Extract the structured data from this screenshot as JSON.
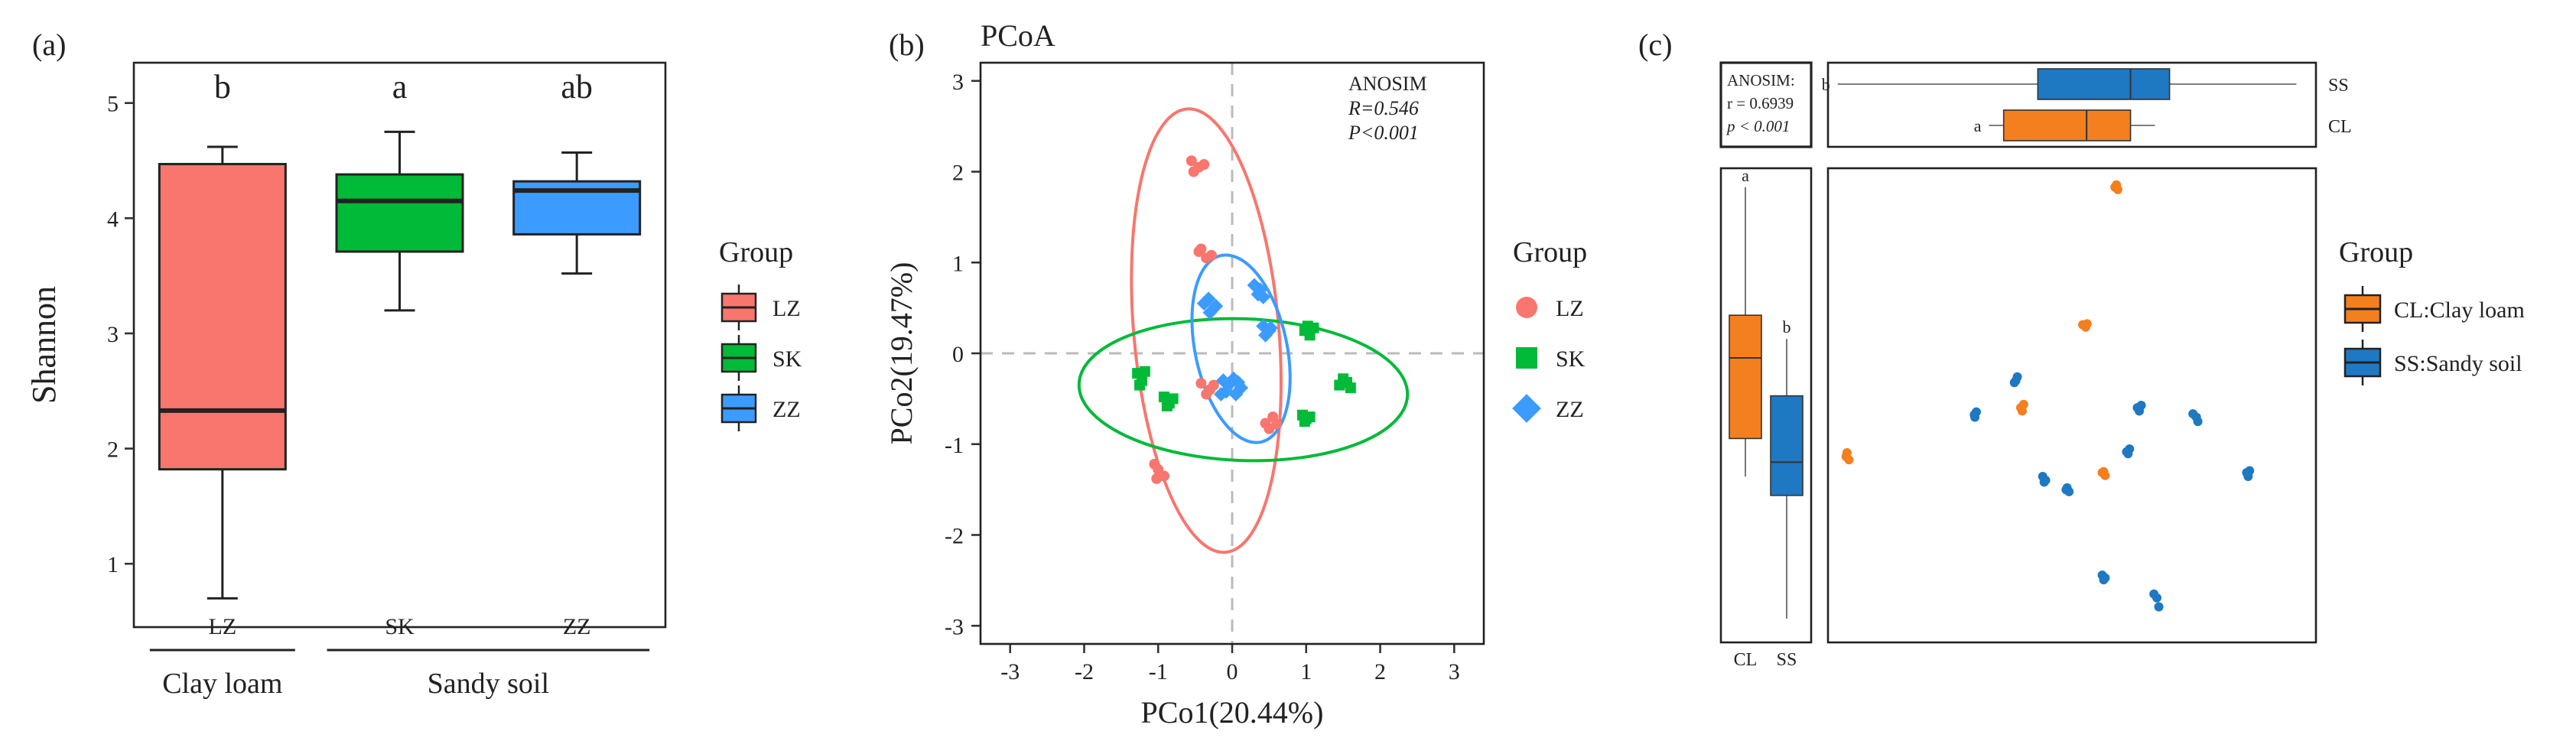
{
  "panel_labels": [
    "(a)",
    "(b)",
    "(c)"
  ],
  "chart_data": [
    {
      "type": "box",
      "panel": "(a)",
      "title": "",
      "ylabel": "Shannon",
      "ylim": [
        0.45,
        5.35
      ],
      "yticks": [
        1,
        2,
        3,
        4,
        5
      ],
      "grid": false,
      "categories": [
        "LZ",
        "SK",
        "ZZ"
      ],
      "boxes": [
        {
          "name": "LZ",
          "color": "#F8766D",
          "min": 0.7,
          "q1": 1.82,
          "median": 2.33,
          "q3": 4.47,
          "max": 4.62,
          "letter": "b"
        },
        {
          "name": "SK",
          "color": "#00BA38",
          "min": 3.2,
          "q1": 3.71,
          "median": 4.15,
          "q3": 4.38,
          "max": 4.75,
          "letter": "a"
        },
        {
          "name": "ZZ",
          "color": "#3C9BFF",
          "min": 3.52,
          "q1": 3.86,
          "median": 4.24,
          "q3": 4.32,
          "max": 4.57,
          "letter": "ab"
        }
      ],
      "groups": [
        {
          "label": "Clay loam",
          "members": [
            "LZ"
          ]
        },
        {
          "label": "Sandy soil",
          "members": [
            "SK",
            "ZZ"
          ]
        }
      ],
      "legend": {
        "title": "Group",
        "position": "right",
        "entries": [
          "LZ",
          "SK",
          "ZZ"
        ]
      }
    },
    {
      "type": "scatter",
      "panel": "(b)",
      "title": "PCoA",
      "xlabel": "PCo1(20.44%)",
      "ylabel": "PCo2(19.47%)",
      "xlim": [
        -3.4,
        3.4
      ],
      "ylim": [
        -3.2,
        3.2
      ],
      "xticks": [
        -3,
        -2,
        -1,
        0,
        1,
        2,
        3
      ],
      "yticks": [
        -3,
        -2,
        -1,
        0,
        1,
        2,
        3
      ],
      "grid": false,
      "annotation": {
        "line1": "ANOSIM",
        "line2": "R=0.546",
        "line3": "P<0.001"
      },
      "series": [
        {
          "name": "LZ",
          "color": "#F8766D",
          "marker": "circle",
          "points": [
            [
              -0.55,
              2.12
            ],
            [
              -0.45,
              2.05
            ],
            [
              -0.38,
              2.08
            ],
            [
              -0.52,
              2.0
            ],
            [
              -0.45,
              1.12
            ],
            [
              -0.35,
              1.05
            ],
            [
              -0.28,
              1.08
            ],
            [
              -0.42,
              1.15
            ],
            [
              -0.42,
              -0.33
            ],
            [
              -0.3,
              -0.4
            ],
            [
              -0.35,
              -0.45
            ],
            [
              -0.25,
              -0.35
            ],
            [
              0.45,
              -0.77
            ],
            [
              0.55,
              -0.7
            ],
            [
              0.6,
              -0.78
            ],
            [
              0.5,
              -0.83
            ],
            [
              -1.05,
              -1.22
            ],
            [
              -1.0,
              -1.28
            ],
            [
              -0.92,
              -1.35
            ],
            [
              -1.02,
              -1.38
            ]
          ]
        },
        {
          "name": "SK",
          "color": "#00BA38",
          "marker": "square",
          "points": [
            [
              -1.28,
              -0.22
            ],
            [
              -1.22,
              -0.3
            ],
            [
              -1.18,
              -0.2
            ],
            [
              -1.25,
              -0.35
            ],
            [
              -0.92,
              -0.48
            ],
            [
              -0.85,
              -0.55
            ],
            [
              -0.8,
              -0.5
            ],
            [
              -0.88,
              -0.58
            ],
            [
              0.98,
              0.25
            ],
            [
              1.05,
              0.2
            ],
            [
              1.1,
              0.28
            ],
            [
              1.02,
              0.3
            ],
            [
              0.95,
              -0.68
            ],
            [
              1.0,
              -0.72
            ],
            [
              1.05,
              -0.7
            ],
            [
              0.98,
              -0.75
            ],
            [
              1.45,
              -0.35
            ],
            [
              1.55,
              -0.32
            ],
            [
              1.5,
              -0.28
            ],
            [
              1.6,
              -0.38
            ]
          ]
        },
        {
          "name": "ZZ",
          "color": "#3C9BFF",
          "marker": "diamond",
          "points": [
            [
              -0.38,
              0.55
            ],
            [
              -0.3,
              0.45
            ],
            [
              -0.22,
              0.52
            ],
            [
              -0.32,
              0.6
            ],
            [
              0.3,
              0.75
            ],
            [
              0.38,
              0.7
            ],
            [
              0.42,
              0.62
            ],
            [
              0.35,
              0.65
            ],
            [
              0.42,
              0.3
            ],
            [
              0.5,
              0.25
            ],
            [
              0.45,
              0.2
            ],
            [
              0.52,
              0.28
            ],
            [
              -0.12,
              -0.3
            ],
            [
              -0.05,
              -0.35
            ],
            [
              0.02,
              -0.28
            ],
            [
              -0.08,
              -0.42
            ],
            [
              0.08,
              -0.32
            ],
            [
              0.12,
              -0.38
            ],
            [
              -0.15,
              -0.45
            ],
            [
              0.05,
              -0.45
            ]
          ]
        }
      ],
      "ellipses": [
        {
          "name": "LZ",
          "color": "#F8766D",
          "cx": -0.35,
          "cy": 0.25,
          "rx": 0.98,
          "ry": 2.45,
          "rotate_deg": 5
        },
        {
          "name": "SK",
          "color": "#00BA38",
          "cx": 0.15,
          "cy": -0.4,
          "rx": 2.22,
          "ry": 0.78,
          "rotate_deg": -2
        },
        {
          "name": "ZZ",
          "color": "#3C9BFF",
          "cx": 0.12,
          "cy": 0.05,
          "rx": 0.62,
          "ry": 1.05,
          "rotate_deg": 12
        }
      ],
      "legend": {
        "title": "Group",
        "position": "right",
        "entries": [
          "LZ",
          "SK",
          "ZZ"
        ]
      }
    },
    {
      "type": "scatter",
      "panel": "(c)",
      "title": "",
      "xlabel": "",
      "ylabel": "",
      "xlim": [
        0,
        1
      ],
      "ylim": [
        0,
        1
      ],
      "grid": false,
      "annotation": {
        "line1": "ANOSIM:",
        "line2": "r = 0.6939",
        "line3": "p < 0.001"
      },
      "series": [
        {
          "name": "CL",
          "color": "#F47F1F",
          "marker": "circle",
          "points": [
            [
              0.037,
              0.392
            ],
            [
              0.043,
              0.385
            ],
            [
              0.039,
              0.4
            ],
            [
              0.588,
              0.96
            ],
            [
              0.594,
              0.955
            ],
            [
              0.591,
              0.965
            ],
            [
              0.522,
              0.67
            ],
            [
              0.528,
              0.665
            ],
            [
              0.531,
              0.672
            ],
            [
              0.395,
              0.495
            ],
            [
              0.401,
              0.502
            ],
            [
              0.398,
              0.488
            ],
            [
              0.562,
              0.358
            ],
            [
              0.568,
              0.352
            ],
            [
              0.565,
              0.36
            ]
          ]
        },
        {
          "name": "SS",
          "color": "#1F78C2",
          "marker": "circle",
          "points": [
            [
              0.382,
              0.548
            ],
            [
              0.388,
              0.56
            ],
            [
              0.385,
              0.552
            ],
            [
              0.3,
              0.48
            ],
            [
              0.304,
              0.486
            ],
            [
              0.301,
              0.475
            ],
            [
              0.44,
              0.35
            ],
            [
              0.446,
              0.342
            ],
            [
              0.443,
              0.338
            ],
            [
              0.488,
              0.322
            ],
            [
              0.494,
              0.318
            ],
            [
              0.49,
              0.326
            ],
            [
              0.612,
              0.402
            ],
            [
              0.618,
              0.408
            ],
            [
              0.615,
              0.398
            ],
            [
              0.634,
              0.495
            ],
            [
              0.642,
              0.5
            ],
            [
              0.638,
              0.488
            ],
            [
              0.748,
              0.482
            ],
            [
              0.755,
              0.475
            ],
            [
              0.758,
              0.466
            ],
            [
              0.858,
              0.358
            ],
            [
              0.864,
              0.362
            ],
            [
              0.861,
              0.35
            ],
            [
              0.562,
              0.142
            ],
            [
              0.568,
              0.136
            ],
            [
              0.565,
              0.132
            ],
            [
              0.668,
              0.102
            ],
            [
              0.674,
              0.094
            ],
            [
              0.678,
              0.075
            ]
          ]
        }
      ],
      "marginal_top": [
        {
          "name": "SS",
          "color": "#1F78C2",
          "min": 0.02,
          "q1": 0.43,
          "median": 0.62,
          "q3": 0.7,
          "max": 0.96,
          "letter": "b"
        },
        {
          "name": "CL",
          "color": "#F47F1F",
          "min": 0.33,
          "q1": 0.36,
          "median": 0.53,
          "q3": 0.62,
          "max": 0.67,
          "letter": "a"
        }
      ],
      "marginal_left": [
        {
          "name": "CL",
          "color": "#F47F1F",
          "min": 0.35,
          "q1": 0.43,
          "median": 0.6,
          "q3": 0.69,
          "max": 0.96,
          "letter": "a"
        },
        {
          "name": "SS",
          "color": "#1F78C2",
          "min": 0.05,
          "q1": 0.31,
          "median": 0.38,
          "q3": 0.52,
          "max": 0.64,
          "letter": "b"
        }
      ],
      "legend": {
        "title": "Group",
        "position": "right",
        "entries": [
          "CL:Clay loam",
          "SS:Sandy soil"
        ]
      }
    }
  ]
}
